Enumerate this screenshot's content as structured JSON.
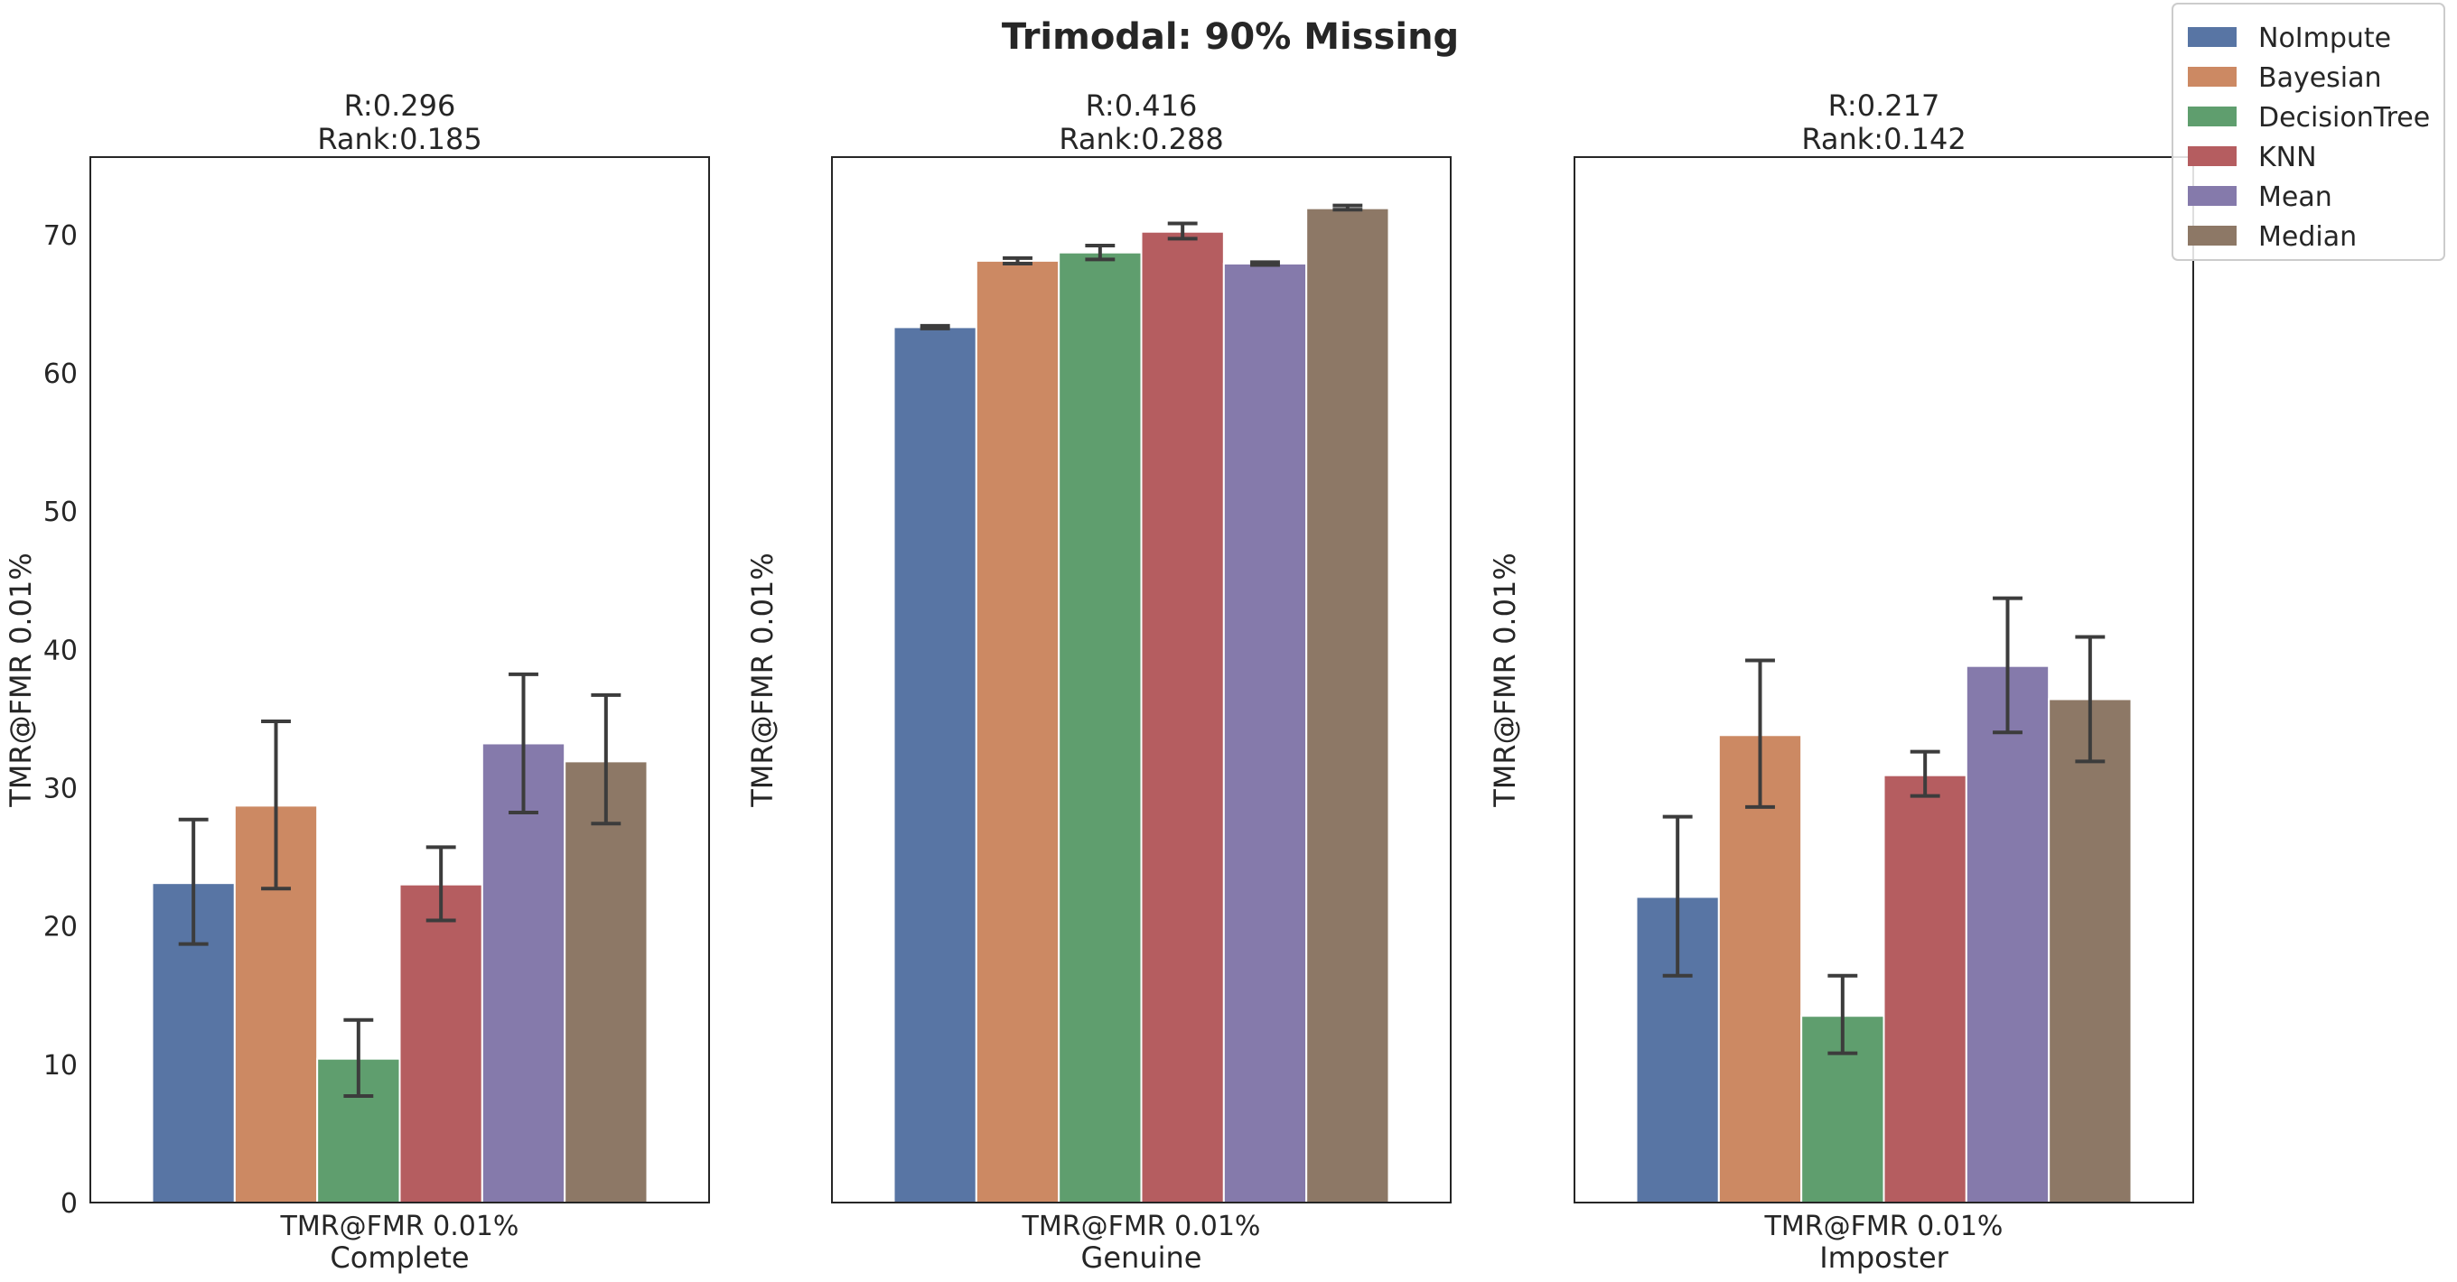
{
  "figure": {
    "suptitle": "Trimodal: 90% Missing"
  },
  "legend": {
    "placement": "top-right",
    "entries": [
      {
        "name": "NoImpute",
        "color": "#5875a4"
      },
      {
        "name": "Bayesian",
        "color": "#cc8963"
      },
      {
        "name": "DecisionTree",
        "color": "#5f9e6e"
      },
      {
        "name": "KNN",
        "color": "#b55d60"
      },
      {
        "name": "Mean",
        "color": "#857aab"
      },
      {
        "name": "Median",
        "color": "#8d7866"
      }
    ]
  },
  "errorbar_color": "#3c3c3c",
  "chart_data": [
    {
      "type": "bar",
      "title": "R:0.296\nRank:0.185",
      "title_lines": [
        "R:0.296",
        "Rank:0.185"
      ],
      "xlabel": "Complete",
      "ylabel": "TMR@FMR 0.01%",
      "categories": [
        "TMR@FMR 0.01%"
      ],
      "ylim": [
        0,
        75.6
      ],
      "yticks": [
        0,
        10,
        20,
        30,
        40,
        50,
        60,
        70
      ],
      "show_ytick_labels": true,
      "grid": false,
      "series": [
        {
          "name": "NoImpute",
          "values": [
            23.1
          ],
          "err_low": [
            18.7
          ],
          "err_high": [
            27.7
          ]
        },
        {
          "name": "Bayesian",
          "values": [
            28.7
          ],
          "err_low": [
            22.7
          ],
          "err_high": [
            34.8
          ]
        },
        {
          "name": "DecisionTree",
          "values": [
            10.4
          ],
          "err_low": [
            7.7
          ],
          "err_high": [
            13.2
          ]
        },
        {
          "name": "KNN",
          "values": [
            23.0
          ],
          "err_low": [
            20.4
          ],
          "err_high": [
            25.7
          ]
        },
        {
          "name": "Mean",
          "values": [
            33.2
          ],
          "err_low": [
            28.2
          ],
          "err_high": [
            38.2
          ]
        },
        {
          "name": "Median",
          "values": [
            31.9
          ],
          "err_low": [
            27.4
          ],
          "err_high": [
            36.7
          ]
        }
      ]
    },
    {
      "type": "bar",
      "title": "R:0.416\nRank:0.288",
      "title_lines": [
        "R:0.416",
        "Rank:0.288"
      ],
      "xlabel": "Genuine",
      "ylabel": "TMR@FMR 0.01%",
      "categories": [
        "TMR@FMR 0.01%"
      ],
      "ylim": [
        0,
        75.6
      ],
      "yticks": [
        0,
        10,
        20,
        30,
        40,
        50,
        60,
        70
      ],
      "show_ytick_labels": false,
      "grid": false,
      "series": [
        {
          "name": "NoImpute",
          "values": [
            63.3
          ],
          "err_low": [
            63.2
          ],
          "err_high": [
            63.4
          ]
        },
        {
          "name": "Bayesian",
          "values": [
            68.1
          ],
          "err_low": [
            67.9
          ],
          "err_high": [
            68.3
          ]
        },
        {
          "name": "DecisionTree",
          "values": [
            68.7
          ],
          "err_low": [
            68.2
          ],
          "err_high": [
            69.2
          ]
        },
        {
          "name": "KNN",
          "values": [
            70.2
          ],
          "err_low": [
            69.7
          ],
          "err_high": [
            70.8
          ]
        },
        {
          "name": "Mean",
          "values": [
            67.9
          ],
          "err_low": [
            67.8
          ],
          "err_high": [
            68.0
          ]
        },
        {
          "name": "Median",
          "values": [
            71.9
          ],
          "err_low": [
            71.8
          ],
          "err_high": [
            72.1
          ]
        }
      ]
    },
    {
      "type": "bar",
      "title": "R:0.217\nRank:0.142",
      "title_lines": [
        "R:0.217",
        "Rank:0.142"
      ],
      "xlabel": "Imposter",
      "ylabel": "TMR@FMR 0.01%",
      "categories": [
        "TMR@FMR 0.01%"
      ],
      "ylim": [
        0,
        75.6
      ],
      "yticks": [
        0,
        10,
        20,
        30,
        40,
        50,
        60,
        70
      ],
      "show_ytick_labels": false,
      "grid": false,
      "series": [
        {
          "name": "NoImpute",
          "values": [
            22.1
          ],
          "err_low": [
            16.4
          ],
          "err_high": [
            27.9
          ]
        },
        {
          "name": "Bayesian",
          "values": [
            33.8
          ],
          "err_low": [
            28.6
          ],
          "err_high": [
            39.2
          ]
        },
        {
          "name": "DecisionTree",
          "values": [
            13.5
          ],
          "err_low": [
            10.8
          ],
          "err_high": [
            16.4
          ]
        },
        {
          "name": "KNN",
          "values": [
            30.9
          ],
          "err_low": [
            29.4
          ],
          "err_high": [
            32.6
          ]
        },
        {
          "name": "Mean",
          "values": [
            38.8
          ],
          "err_low": [
            34.0
          ],
          "err_high": [
            43.7
          ]
        },
        {
          "name": "Median",
          "values": [
            36.4
          ],
          "err_low": [
            31.9
          ],
          "err_high": [
            40.9
          ]
        }
      ]
    }
  ]
}
